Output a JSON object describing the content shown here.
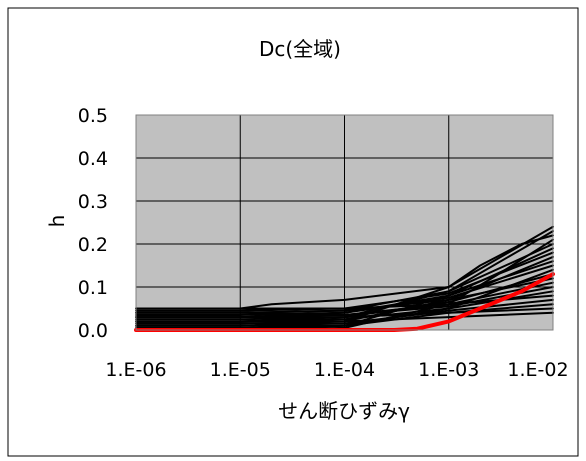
{
  "chart_data": {
    "type": "line",
    "title": "Dc(全域)",
    "xlabel": "せん断ひずみγ",
    "ylabel": "h",
    "x_scale": "log",
    "xlim": [
      1e-06,
      0.01
    ],
    "ylim": [
      0,
      0.5
    ],
    "x_tick_labels": [
      "1.E-06",
      "1.E-05",
      "1.E-04",
      "1.E-03",
      "1.E-02"
    ],
    "x_tick_values": [
      1e-06,
      1e-05,
      0.0001,
      0.001,
      0.01
    ],
    "y_tick_labels": [
      "0.0",
      "0.1",
      "0.2",
      "0.3",
      "0.4",
      "0.5"
    ],
    "y_tick_values": [
      0,
      0.1,
      0.2,
      0.3,
      0.4,
      0.5
    ],
    "grid": true,
    "legend": "none",
    "colors": {
      "plot_background": "#c0c0c0",
      "gridline": "#000000",
      "series_default": "#000000",
      "highlight": "#ff0000"
    },
    "series": [
      {
        "color": "#000000",
        "x": [
          1e-06,
          1e-05,
          0.0001,
          0.001,
          0.01
        ],
        "y": [
          0.05,
          0.05,
          0.05,
          0.06,
          0.08
        ]
      },
      {
        "color": "#000000",
        "x": [
          1e-06,
          1e-05,
          0.0001,
          0.001,
          0.01
        ],
        "y": [
          0.04,
          0.04,
          0.045,
          0.07,
          0.12
        ]
      },
      {
        "color": "#000000",
        "x": [
          1e-06,
          1e-05,
          0.0001,
          0.001,
          0.01
        ],
        "y": [
          0.03,
          0.03,
          0.04,
          0.08,
          0.16
        ]
      },
      {
        "color": "#000000",
        "x": [
          1e-06,
          1e-05,
          0.0001,
          0.001,
          0.01
        ],
        "y": [
          0.02,
          0.02,
          0.03,
          0.09,
          0.2
        ]
      },
      {
        "color": "#000000",
        "x": [
          1e-06,
          1e-05,
          0.0001,
          0.001,
          0.01
        ],
        "y": [
          0.01,
          0.01,
          0.02,
          0.1,
          0.24
        ]
      },
      {
        "color": "#000000",
        "x": [
          1e-06,
          1e-05,
          2e-05,
          0.0001,
          0.001,
          0.002,
          0.005,
          0.01
        ],
        "y": [
          0.05,
          0.05,
          0.06,
          0.07,
          0.1,
          0.15,
          0.2,
          0.22
        ]
      },
      {
        "color": "#000000",
        "x": [
          1e-06,
          1e-05,
          0.0001,
          0.001,
          0.003,
          0.01
        ],
        "y": [
          0.0,
          0.0,
          0.005,
          0.06,
          0.13,
          0.21
        ]
      },
      {
        "color": "#000000",
        "x": [
          1e-06,
          1e-05,
          0.0001,
          0.001,
          0.01
        ],
        "y": [
          0.04,
          0.04,
          0.035,
          0.055,
          0.1
        ]
      },
      {
        "color": "#000000",
        "x": [
          1e-06,
          1e-05,
          0.0001,
          0.001,
          0.01
        ],
        "y": [
          0.03,
          0.03,
          0.03,
          0.04,
          0.06
        ]
      },
      {
        "color": "#000000",
        "x": [
          1e-06,
          1e-05,
          0.0001,
          0.001,
          0.01
        ],
        "y": [
          0.02,
          0.02,
          0.02,
          0.03,
          0.04
        ]
      },
      {
        "color": "#000000",
        "x": [
          1e-06,
          1e-05,
          0.0001,
          0.001,
          0.01
        ],
        "y": [
          0.01,
          0.01,
          0.01,
          0.05,
          0.14
        ]
      },
      {
        "color": "#000000",
        "x": [
          1e-06,
          1e-05,
          0.0001,
          0.001,
          0.01
        ],
        "y": [
          0.045,
          0.045,
          0.05,
          0.085,
          0.18
        ]
      },
      {
        "color": "#000000",
        "x": [
          1e-06,
          1e-05,
          0.0001,
          0.001,
          0.01
        ],
        "y": [
          0.035,
          0.035,
          0.04,
          0.075,
          0.15
        ]
      },
      {
        "color": "#000000",
        "x": [
          1e-06,
          1e-05,
          0.0001,
          0.001,
          0.01
        ],
        "y": [
          0.025,
          0.025,
          0.03,
          0.065,
          0.13
        ]
      },
      {
        "color": "#000000",
        "x": [
          1e-06,
          1e-05,
          0.0001,
          0.001,
          0.01
        ],
        "y": [
          0.015,
          0.015,
          0.02,
          0.07,
          0.17
        ]
      },
      {
        "color": "#000000",
        "x": [
          1e-06,
          1e-05,
          0.0001,
          0.001,
          0.01
        ],
        "y": [
          0.005,
          0.005,
          0.01,
          0.08,
          0.19
        ]
      },
      {
        "color": "#000000",
        "x": [
          1e-06,
          1e-05,
          0.0001,
          0.001,
          0.01
        ],
        "y": [
          0.04,
          0.04,
          0.045,
          0.09,
          0.23
        ]
      },
      {
        "color": "#000000",
        "x": [
          1e-06,
          1e-05,
          0.0001,
          0.001,
          0.01
        ],
        "y": [
          0.03,
          0.03,
          0.035,
          0.06,
          0.11
        ]
      },
      {
        "color": "#000000",
        "x": [
          1e-06,
          1e-05,
          0.0001,
          0.001,
          0.01
        ],
        "y": [
          0.02,
          0.02,
          0.025,
          0.05,
          0.09
        ]
      },
      {
        "color": "#000000",
        "x": [
          1e-06,
          1e-05,
          0.0001,
          0.001,
          0.01
        ],
        "y": [
          0.01,
          0.01,
          0.015,
          0.045,
          0.07
        ]
      },
      {
        "color": "#000000",
        "x": [
          1e-06,
          1e-05,
          0.0001,
          0.001,
          0.01
        ],
        "y": [
          0.0,
          0.0,
          0.01,
          0.04,
          0.05
        ]
      },
      {
        "color": "#ff0000",
        "x": [
          1e-06,
          1e-05,
          0.0001,
          0.0003,
          0.0005,
          0.001,
          0.002,
          0.005,
          0.01
        ],
        "y": [
          0.0,
          0.0,
          0.0,
          0.0,
          0.003,
          0.02,
          0.05,
          0.09,
          0.13
        ]
      }
    ]
  }
}
